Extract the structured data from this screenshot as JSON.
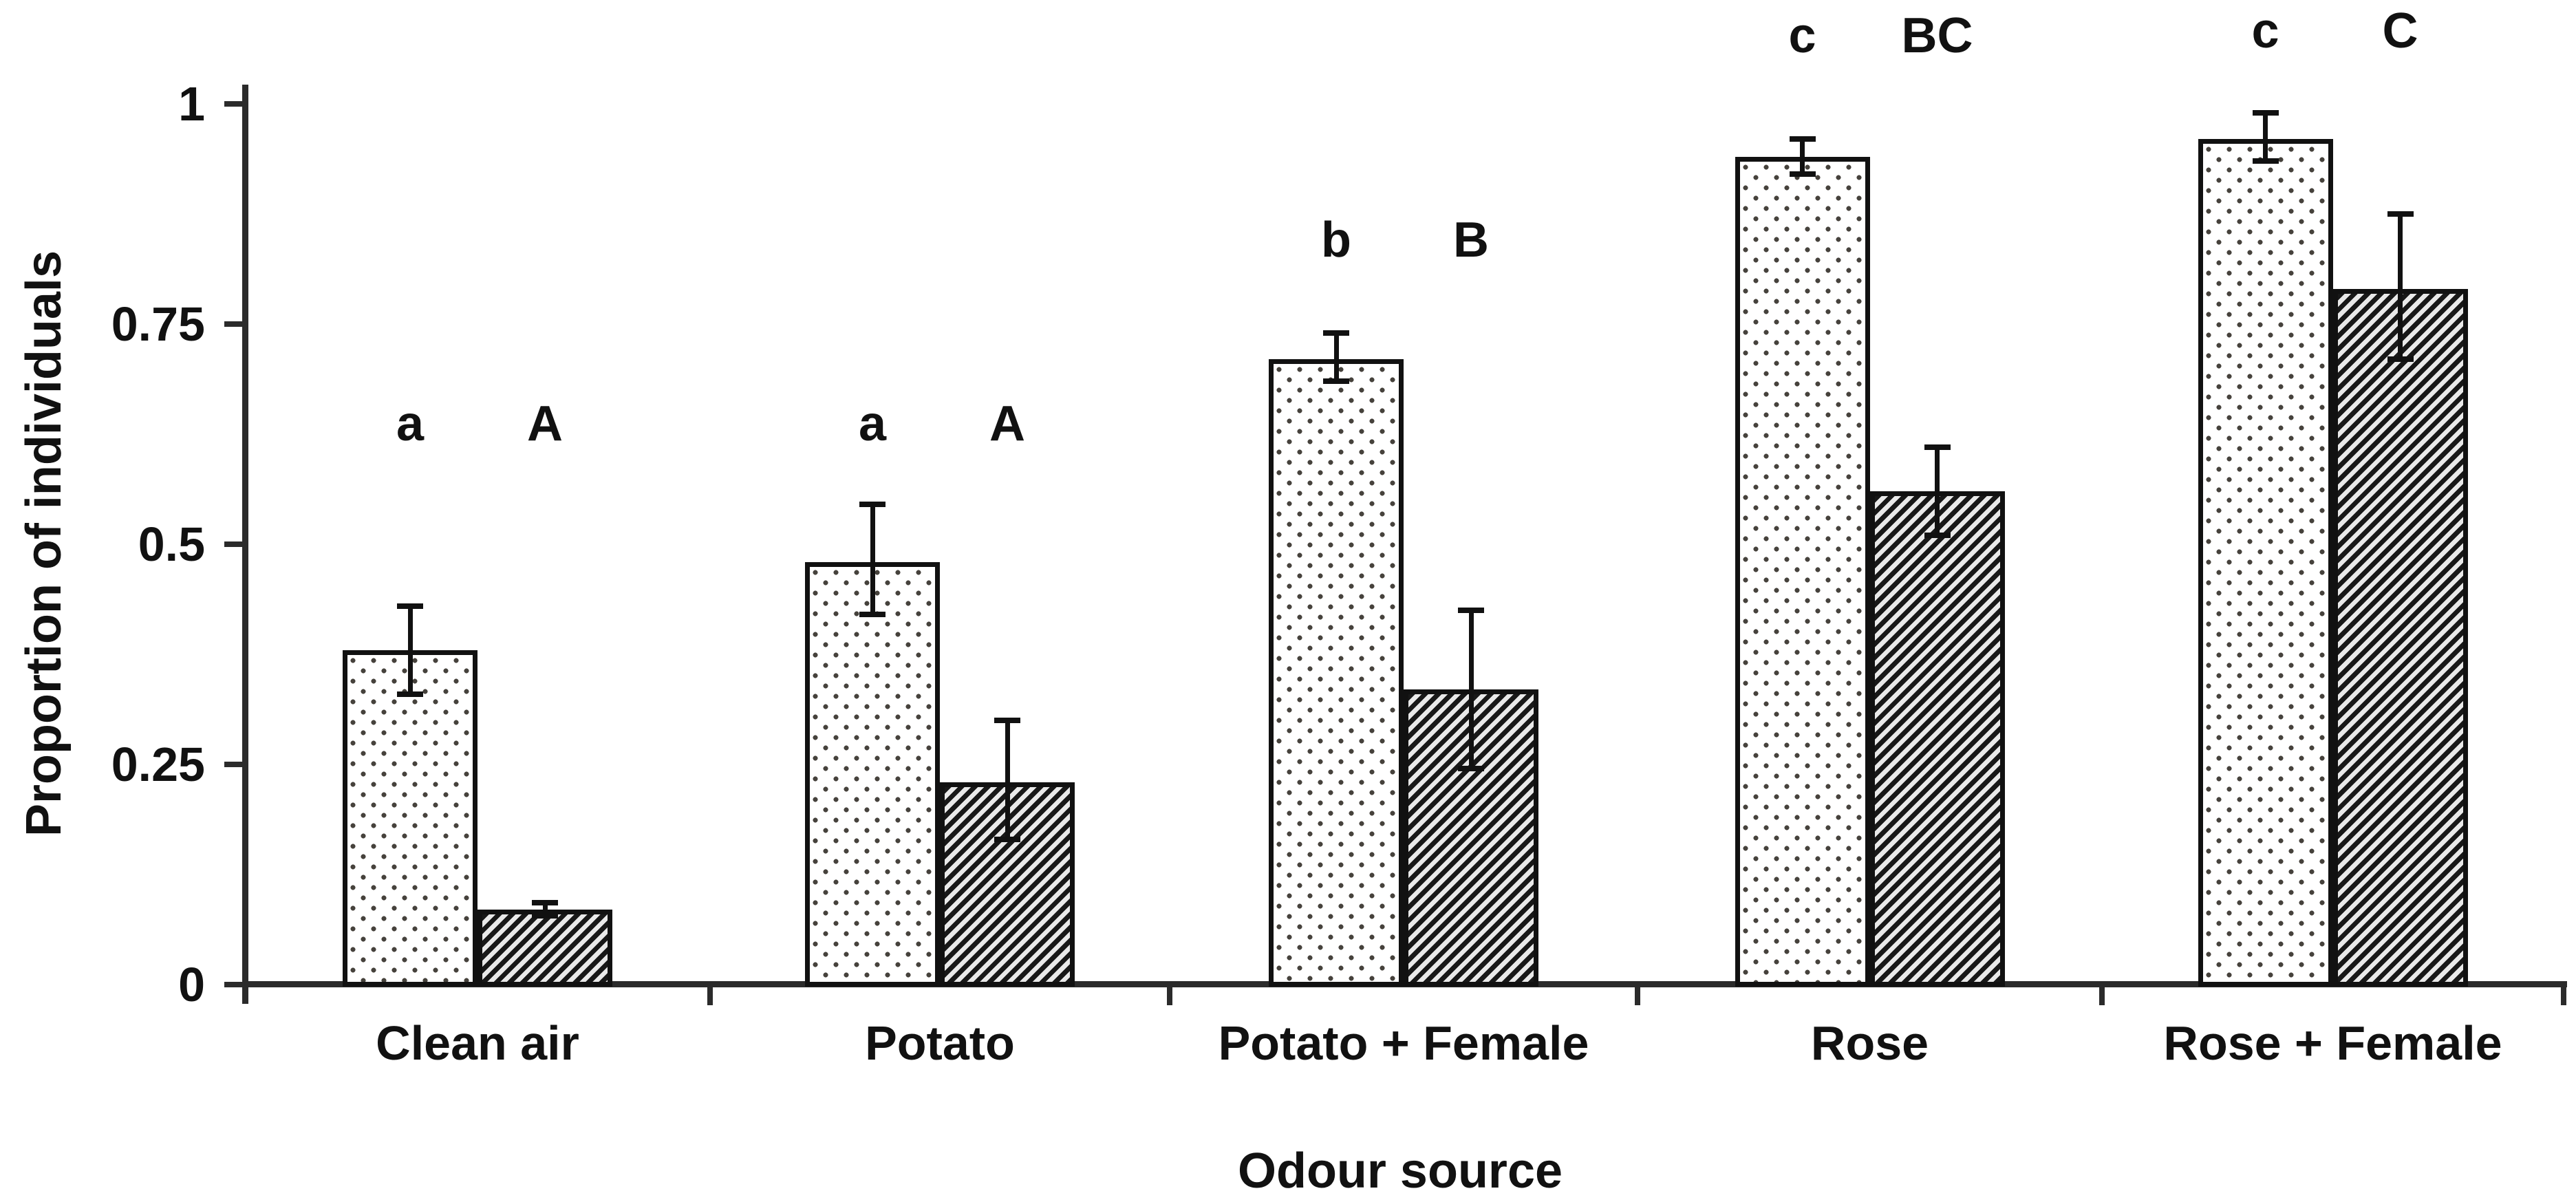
{
  "figure": {
    "background": "#ffffff",
    "text_color": "#111111",
    "axis_color": "#2b2b2b"
  },
  "chart_data": {
    "type": "bar",
    "title": "",
    "xlabel": "Odour source",
    "ylabel": "Proportion of individuals",
    "ylim": [
      0,
      1
    ],
    "grid": false,
    "legend": "none",
    "yticks": [
      {
        "value": 0,
        "label": "0"
      },
      {
        "value": 0.25,
        "label": "0.25"
      },
      {
        "value": 0.5,
        "label": "0.5"
      },
      {
        "value": 0.75,
        "label": "0.75"
      },
      {
        "value": 1,
        "label": "1"
      }
    ],
    "categories": [
      "Clean air",
      "Potato",
      "Potato + Female",
      "Rose",
      "Rose + Female"
    ],
    "series": [
      {
        "name": "stippled-light-bars",
        "pattern": "dots",
        "values": [
          0.38,
          0.48,
          0.71,
          0.94,
          0.96
        ],
        "err_low": [
          0.33,
          0.42,
          0.685,
          0.92,
          0.935
        ],
        "err_high": [
          0.43,
          0.545,
          0.74,
          0.96,
          0.99
        ],
        "sig_letters": [
          "a",
          "a",
          "b",
          "c",
          "c"
        ]
      },
      {
        "name": "hatched-dark-bars",
        "pattern": "diagonal-stripes",
        "values": [
          0.085,
          0.23,
          0.335,
          0.56,
          0.79
        ],
        "err_low": [
          0.078,
          0.165,
          0.245,
          0.51,
          0.71
        ],
        "err_high": [
          0.093,
          0.3,
          0.425,
          0.61,
          0.875
        ],
        "sig_letters": [
          "A",
          "A",
          "B",
          "BC",
          "C"
        ]
      }
    ],
    "sig_letter_y": [
      0.637,
      0.637,
      0.845,
      1.077,
      1.083
    ]
  }
}
